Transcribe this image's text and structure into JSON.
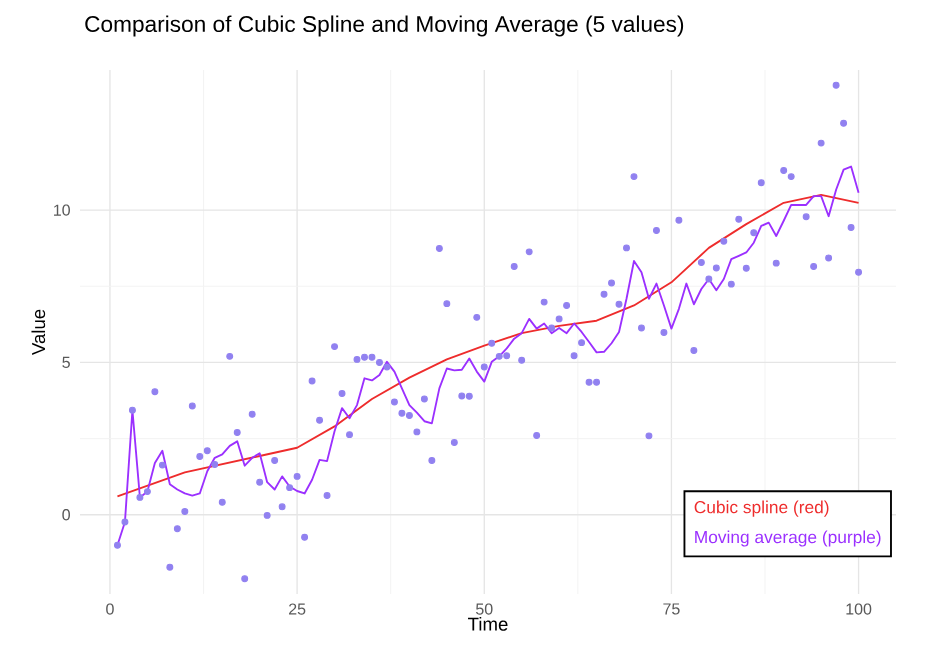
{
  "chart_data": {
    "type": "line",
    "title": "Comparison of Cubic Spline and Moving Average (5 values)",
    "xlabel": "Time",
    "ylabel": "Value",
    "xlim": [
      -4,
      105
    ],
    "ylim": [
      -2.6,
      14.6
    ],
    "xticks": [
      0,
      25,
      50,
      75,
      100
    ],
    "yticks": [
      0,
      5,
      10
    ],
    "grid": true,
    "legend": "bottom right",
    "series": [
      {
        "type": "scatter",
        "marker": "circle",
        "color": "#9181f0",
        "x": [
          1,
          2,
          3,
          4,
          5,
          6,
          7,
          8,
          9,
          10,
          11,
          12,
          13,
          14,
          15,
          16,
          17,
          18,
          19,
          20,
          21,
          22,
          23,
          24,
          25,
          26,
          27,
          28,
          29,
          30,
          31,
          32,
          33,
          34,
          35,
          36,
          37,
          38,
          39,
          40,
          41,
          42,
          43,
          44,
          45,
          46,
          47,
          48,
          49,
          50,
          51,
          52,
          53,
          54,
          55,
          56,
          57,
          58,
          59,
          60,
          61,
          62,
          63,
          64,
          65,
          66,
          67,
          68,
          69,
          70,
          71,
          72,
          73,
          74,
          76,
          78,
          79,
          80,
          81,
          82,
          83,
          84,
          85,
          86,
          87,
          89,
          90,
          91,
          93,
          94,
          95,
          96,
          97,
          98,
          99,
          100
        ],
        "values": [
          -1.0,
          -0.24,
          3.43,
          0.57,
          0.76,
          4.04,
          1.63,
          -1.72,
          -0.46,
          0.11,
          3.57,
          1.91,
          2.1,
          1.65,
          0.41,
          5.2,
          2.7,
          -2.1,
          3.3,
          1.07,
          -0.02,
          1.78,
          0.26,
          0.89,
          1.26,
          -0.74,
          4.39,
          3.1,
          0.63,
          5.52,
          3.98,
          2.63,
          5.1,
          5.17,
          5.17,
          5.0,
          4.85,
          3.7,
          3.33,
          3.26,
          2.72,
          3.8,
          1.78,
          8.74,
          6.93,
          2.37,
          3.9,
          3.89,
          6.48,
          4.85,
          5.63,
          5.2,
          5.22,
          8.15,
          5.07,
          8.63,
          2.6,
          6.98,
          6.13,
          6.43,
          6.87,
          5.22,
          5.65,
          4.35,
          4.35,
          7.24,
          7.61,
          6.91,
          8.76,
          11.1,
          6.13,
          2.59,
          9.33,
          5.98,
          9.67,
          5.39,
          8.28,
          7.74,
          8.1,
          8.98,
          7.57,
          9.7,
          8.09,
          9.26,
          10.9,
          8.26,
          11.3,
          11.1,
          9.78,
          8.15,
          12.2,
          8.43,
          14.1,
          12.85,
          9.43,
          7.96
        ]
      },
      {
        "name": "Cubic spline (red)",
        "color": "#ee2c2c",
        "x": [
          1,
          10,
          20,
          25,
          30,
          35,
          40,
          45,
          50,
          55,
          60,
          65,
          70,
          75,
          80,
          85,
          90,
          95,
          100
        ],
        "values": [
          0.6,
          1.39,
          1.93,
          2.2,
          2.9,
          3.8,
          4.5,
          5.1,
          5.55,
          5.96,
          6.2,
          6.37,
          6.87,
          7.63,
          8.76,
          9.54,
          10.24,
          10.5,
          10.24
        ]
      },
      {
        "name": "Moving average (purple)",
        "color": "#9b30ff",
        "x": [
          1,
          2,
          3,
          4,
          5,
          6,
          7,
          8,
          9,
          10,
          11,
          12,
          13,
          14,
          15,
          16,
          17,
          18,
          19,
          20,
          21,
          22,
          23,
          24,
          25,
          26,
          27,
          28,
          29,
          30,
          31,
          32,
          33,
          34,
          35,
          36,
          37,
          38,
          39,
          40,
          41,
          42,
          43,
          44,
          45,
          46,
          47,
          48,
          49,
          50,
          51,
          52,
          53,
          54,
          55,
          56,
          57,
          58,
          59,
          60,
          61,
          62,
          63,
          64,
          65,
          66,
          67,
          68,
          69,
          70,
          71,
          72,
          73,
          74,
          75,
          76,
          77,
          78,
          79,
          80,
          81,
          82,
          83,
          84,
          85,
          86,
          87,
          88,
          89,
          90,
          91,
          92,
          93,
          94,
          95,
          96,
          97,
          98,
          99,
          100
        ],
        "values": [
          -1.0,
          -0.24,
          3.43,
          0.57,
          0.76,
          1.7,
          2.1,
          1.0,
          0.83,
          0.7,
          0.63,
          0.7,
          1.43,
          1.87,
          1.98,
          2.26,
          2.41,
          1.61,
          1.87,
          2.02,
          1.07,
          0.83,
          1.26,
          0.93,
          0.78,
          0.7,
          1.15,
          1.8,
          1.76,
          2.74,
          3.5,
          3.17,
          3.6,
          4.48,
          4.41,
          4.59,
          5.02,
          4.7,
          4.15,
          3.6,
          3.35,
          3.07,
          3.0,
          4.15,
          4.8,
          4.74,
          4.76,
          5.13,
          4.7,
          4.37,
          5.02,
          5.2,
          5.46,
          5.78,
          5.96,
          6.43,
          6.11,
          6.28,
          5.96,
          6.13,
          5.96,
          6.28,
          6.0,
          5.67,
          5.33,
          5.35,
          5.63,
          6.0,
          7.09,
          8.33,
          7.96,
          7.09,
          7.59,
          6.87,
          6.11,
          6.76,
          7.59,
          6.91,
          7.41,
          7.74,
          7.37,
          7.74,
          8.39,
          8.5,
          8.61,
          8.93,
          9.48,
          9.59,
          9.15,
          9.65,
          10.17,
          10.17,
          10.17,
          10.46,
          10.46,
          9.8,
          10.67,
          11.33,
          11.43,
          10.57
        ]
      }
    ]
  }
}
